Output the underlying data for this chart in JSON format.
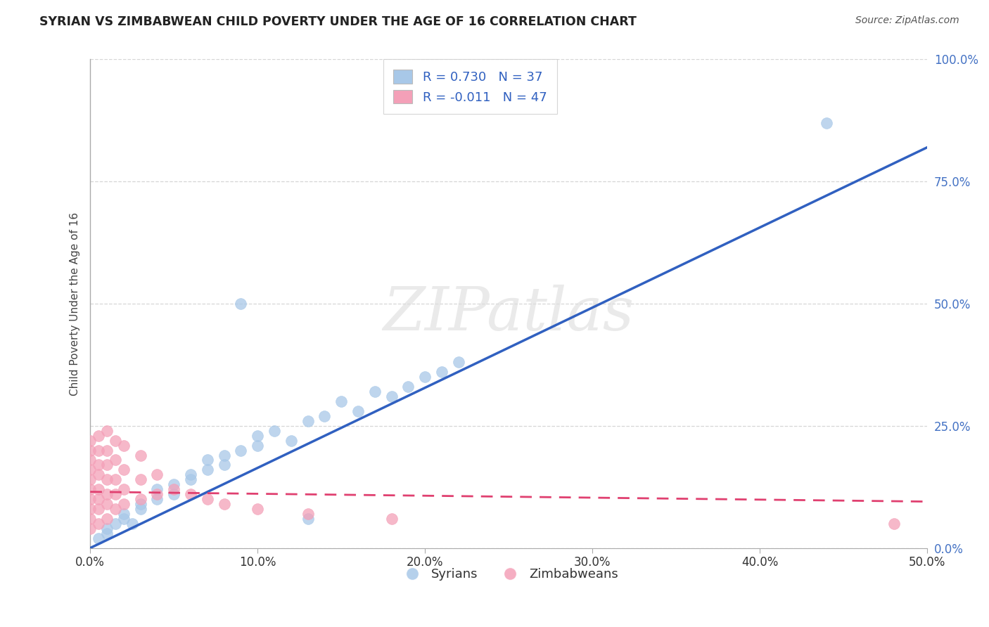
{
  "title": "SYRIAN VS ZIMBABWEAN CHILD POVERTY UNDER THE AGE OF 16 CORRELATION CHART",
  "source": "Source: ZipAtlas.com",
  "ylabel": "Child Poverty Under the Age of 16",
  "xlim": [
    0.0,
    0.5
  ],
  "ylim": [
    0.0,
    1.0
  ],
  "xtick_labels": [
    "0.0%",
    "10.0%",
    "20.0%",
    "30.0%",
    "40.0%",
    "50.0%"
  ],
  "xtick_vals": [
    0.0,
    0.1,
    0.2,
    0.3,
    0.4,
    0.5
  ],
  "ytick_labels": [
    "0.0%",
    "25.0%",
    "50.0%",
    "75.0%",
    "100.0%"
  ],
  "ytick_vals": [
    0.0,
    0.25,
    0.5,
    0.75,
    1.0
  ],
  "watermark": "ZIPatlas",
  "legend_R_blue": "0.730",
  "legend_N_blue": "37",
  "legend_R_pink": "-0.011",
  "legend_N_pink": "47",
  "blue_color": "#a8c8e8",
  "pink_color": "#f4a0b8",
  "blue_line_color": "#3060c0",
  "pink_line_color": "#e04070",
  "grid_color": "#cccccc",
  "background_color": "#ffffff",
  "blue_line_x0": 0.0,
  "blue_line_y0": 0.0,
  "blue_line_x1": 0.5,
  "blue_line_y1": 0.82,
  "pink_line_x0": 0.0,
  "pink_line_y0": 0.115,
  "pink_line_x1": 0.5,
  "pink_line_y1": 0.095,
  "syrians_x": [
    0.005,
    0.01,
    0.01,
    0.015,
    0.02,
    0.02,
    0.025,
    0.03,
    0.03,
    0.04,
    0.04,
    0.05,
    0.05,
    0.06,
    0.06,
    0.07,
    0.07,
    0.08,
    0.08,
    0.09,
    0.1,
    0.1,
    0.11,
    0.12,
    0.13,
    0.14,
    0.15,
    0.16,
    0.17,
    0.18,
    0.19,
    0.2,
    0.21,
    0.22,
    0.44,
    0.09,
    0.13
  ],
  "syrians_y": [
    0.02,
    0.03,
    0.04,
    0.05,
    0.06,
    0.07,
    0.05,
    0.08,
    0.09,
    0.1,
    0.12,
    0.11,
    0.13,
    0.14,
    0.15,
    0.16,
    0.18,
    0.17,
    0.19,
    0.2,
    0.21,
    0.23,
    0.24,
    0.22,
    0.26,
    0.27,
    0.3,
    0.28,
    0.32,
    0.31,
    0.33,
    0.35,
    0.36,
    0.38,
    0.87,
    0.5,
    0.06
  ],
  "zimbabweans_x": [
    0.0,
    0.0,
    0.0,
    0.0,
    0.0,
    0.0,
    0.0,
    0.0,
    0.0,
    0.0,
    0.005,
    0.005,
    0.005,
    0.005,
    0.005,
    0.005,
    0.005,
    0.005,
    0.01,
    0.01,
    0.01,
    0.01,
    0.01,
    0.01,
    0.01,
    0.015,
    0.015,
    0.015,
    0.015,
    0.015,
    0.02,
    0.02,
    0.02,
    0.02,
    0.03,
    0.03,
    0.03,
    0.04,
    0.04,
    0.05,
    0.06,
    0.07,
    0.08,
    0.1,
    0.13,
    0.18,
    0.48
  ],
  "zimbabweans_y": [
    0.04,
    0.06,
    0.08,
    0.1,
    0.12,
    0.14,
    0.16,
    0.18,
    0.2,
    0.22,
    0.05,
    0.08,
    0.1,
    0.12,
    0.15,
    0.17,
    0.2,
    0.23,
    0.06,
    0.09,
    0.11,
    0.14,
    0.17,
    0.2,
    0.24,
    0.08,
    0.11,
    0.14,
    0.18,
    0.22,
    0.09,
    0.12,
    0.16,
    0.21,
    0.1,
    0.14,
    0.19,
    0.11,
    0.15,
    0.12,
    0.11,
    0.1,
    0.09,
    0.08,
    0.07,
    0.06,
    0.05
  ]
}
